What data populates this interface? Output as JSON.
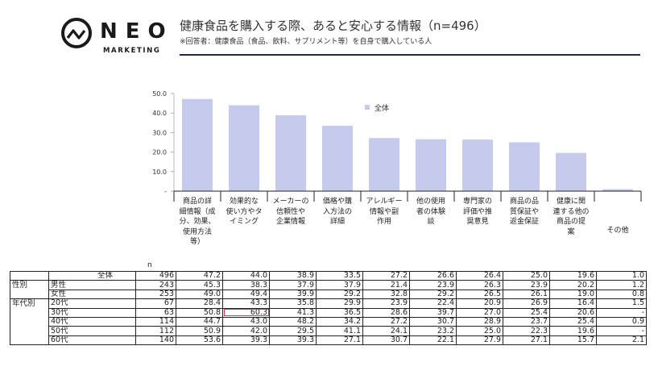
{
  "logo": {
    "brand": "NEO",
    "sub": "MARKETING"
  },
  "header": {
    "title": "健康食品を購入する際、あると安心する情報（n=496）",
    "subtitle": "※回答者：健康食品（食品、飲料、サプリメント等）を自身で購入している人"
  },
  "chart_data": {
    "type": "bar",
    "title": "健康食品を購入する際、あると安心する情報（n=496）",
    "categories": [
      "商品の詳細情報（成分、効果、使用方法等）",
      "効果的な使い方やタイミング",
      "メーカーの信頼性や企業情報",
      "価格や購入方法の詳細",
      "アレルギー情報や副作用",
      "他の使用者の体験談",
      "専門家の評価や推奨意見",
      "商品の品質保証や返金保証",
      "健康に関連する他の商品の提案",
      "その他"
    ],
    "category_lines": [
      [
        "商品の詳",
        "細情報（成",
        "分、効果、",
        "使用方法",
        "等）"
      ],
      [
        "効果的な",
        "使い方やタ",
        "イミング"
      ],
      [
        "メーカーの",
        "信頼性や",
        "企業情報"
      ],
      [
        "価格や購",
        "入方法の",
        "詳細"
      ],
      [
        "アレルギー",
        "情報や副",
        "作用"
      ],
      [
        "他の使用",
        "者の体験",
        "談"
      ],
      [
        "専門家の",
        "評価や推",
        "奨意見"
      ],
      [
        "商品の品",
        "質保証や",
        "返金保証"
      ],
      [
        "健康に関",
        "連する他の",
        "商品の提",
        "案"
      ],
      [
        "その他"
      ]
    ],
    "series": [
      {
        "name": "全体",
        "values": [
          47.2,
          44.0,
          38.9,
          33.5,
          27.2,
          26.6,
          26.4,
          25.0,
          19.6,
          1.0
        ]
      }
    ],
    "ylim": [
      0,
      50
    ],
    "yticks": [
      "-",
      "10.0",
      "20.0",
      "30.0",
      "40.0",
      "50.0"
    ],
    "legend": "全体",
    "color": "#c5cbec"
  },
  "table": {
    "n_header": "n",
    "rows": [
      {
        "group": "",
        "label": "全体",
        "n": "496",
        "values": [
          "47.2",
          "44.0",
          "38.9",
          "33.5",
          "27.2",
          "26.6",
          "26.4",
          "25.0",
          "19.6",
          "1.0"
        ]
      },
      {
        "group": "性別",
        "label": "男性",
        "n": "243",
        "values": [
          "45.3",
          "38.3",
          "37.9",
          "37.9",
          "21.4",
          "23.9",
          "26.3",
          "23.9",
          "20.2",
          "1.2"
        ]
      },
      {
        "group": "",
        "label": "女性",
        "n": "253",
        "values": [
          "49.0",
          "49.4",
          "39.9",
          "29.2",
          "32.8",
          "29.2",
          "26.5",
          "26.1",
          "19.0",
          "0.8"
        ]
      },
      {
        "group": "年代別",
        "label": "20代",
        "n": "67",
        "values": [
          "28.4",
          "43.3",
          "35.8",
          "29.9",
          "23.9",
          "22.4",
          "20.9",
          "26.9",
          "16.4",
          "1.5"
        ]
      },
      {
        "group": "",
        "label": "30代",
        "n": "63",
        "values": [
          "50.8",
          "60.3",
          "41.3",
          "36.5",
          "28.6",
          "39.7",
          "27.0",
          "25.4",
          "20.6",
          "-"
        ]
      },
      {
        "group": "",
        "label": "40代",
        "n": "114",
        "values": [
          "44.7",
          "43.0",
          "48.2",
          "34.2",
          "27.2",
          "30.7",
          "28.9",
          "23.7",
          "25.4",
          "0.9"
        ]
      },
      {
        "group": "",
        "label": "50代",
        "n": "112",
        "values": [
          "50.9",
          "42.0",
          "29.5",
          "41.1",
          "24.1",
          "23.2",
          "25.0",
          "22.3",
          "19.6",
          "-"
        ]
      },
      {
        "group": "",
        "label": "60代",
        "n": "140",
        "values": [
          "53.6",
          "39.3",
          "39.3",
          "27.1",
          "30.7",
          "22.1",
          "27.9",
          "27.1",
          "15.7",
          "2.1"
        ]
      }
    ],
    "highlight": {
      "row": 4,
      "col": 1
    }
  }
}
